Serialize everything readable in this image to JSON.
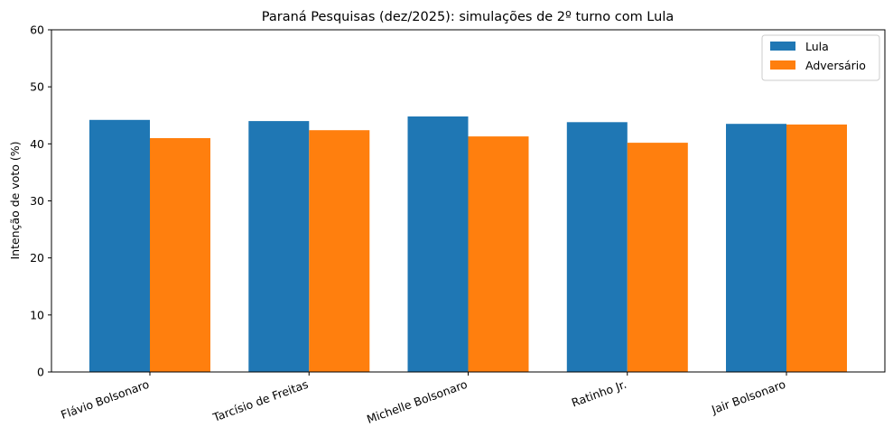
{
  "chart_data": {
    "type": "bar",
    "title": "Paraná Pesquisas (dez/2025): simulações de 2º turno com Lula",
    "xlabel": "",
    "ylabel": "Intenção de voto (%)",
    "ylim": [
      0,
      60
    ],
    "yticks": [
      0,
      10,
      20,
      30,
      40,
      50,
      60
    ],
    "grid": false,
    "legend_position": "upper right",
    "categories": [
      "Flávio Bolsonaro",
      "Tarcísio de Freitas",
      "Michelle Bolsonaro",
      "Ratinho Jr.",
      "Jair Bolsonaro"
    ],
    "series": [
      {
        "name": "Lula",
        "color": "#1f77b4",
        "values": [
          44.2,
          44.0,
          44.8,
          43.8,
          43.5
        ]
      },
      {
        "name": "Adversário",
        "color": "#ff7f0e",
        "values": [
          41.0,
          42.4,
          41.3,
          40.2,
          43.4
        ]
      }
    ]
  }
}
